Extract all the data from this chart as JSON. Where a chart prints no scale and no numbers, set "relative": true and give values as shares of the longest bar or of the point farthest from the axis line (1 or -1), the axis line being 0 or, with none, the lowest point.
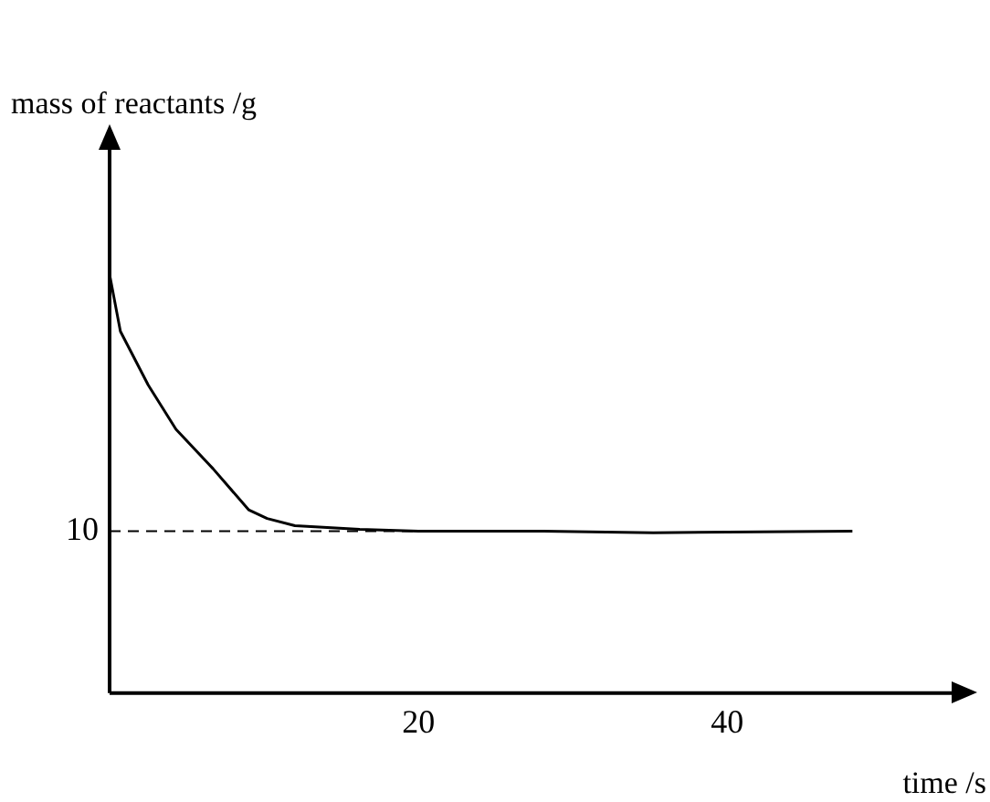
{
  "chart_data": {
    "type": "line",
    "xlabel": "time /s",
    "ylabel": "mass of reactants /g",
    "relative": true,
    "x": [
      0,
      0.7,
      2.5,
      4.3,
      6.7,
      9.0,
      10.2,
      12.0,
      16.2,
      20,
      28.1,
      35.2,
      48.1
    ],
    "series": [
      {
        "color": "#000000",
        "values": [
          1,
          0.864,
          0.736,
          0.63,
          0.536,
          0.438,
          0.417,
          0.4,
          0.391,
          0.387,
          0.387,
          0.383,
          0.387
        ]
      }
    ],
    "xlim": [
      0,
      55
    ],
    "xticks": [
      20,
      40
    ],
    "tick_labels": "x",
    "grid": false,
    "legend": false,
    "marker": "none",
    "line_style": "solid",
    "ref_lines": [
      {
        "axis": "y",
        "value": 0.387,
        "color": "#000000",
        "line_style": "dashed"
      }
    ],
    "annotations": [
      "10"
    ]
  }
}
